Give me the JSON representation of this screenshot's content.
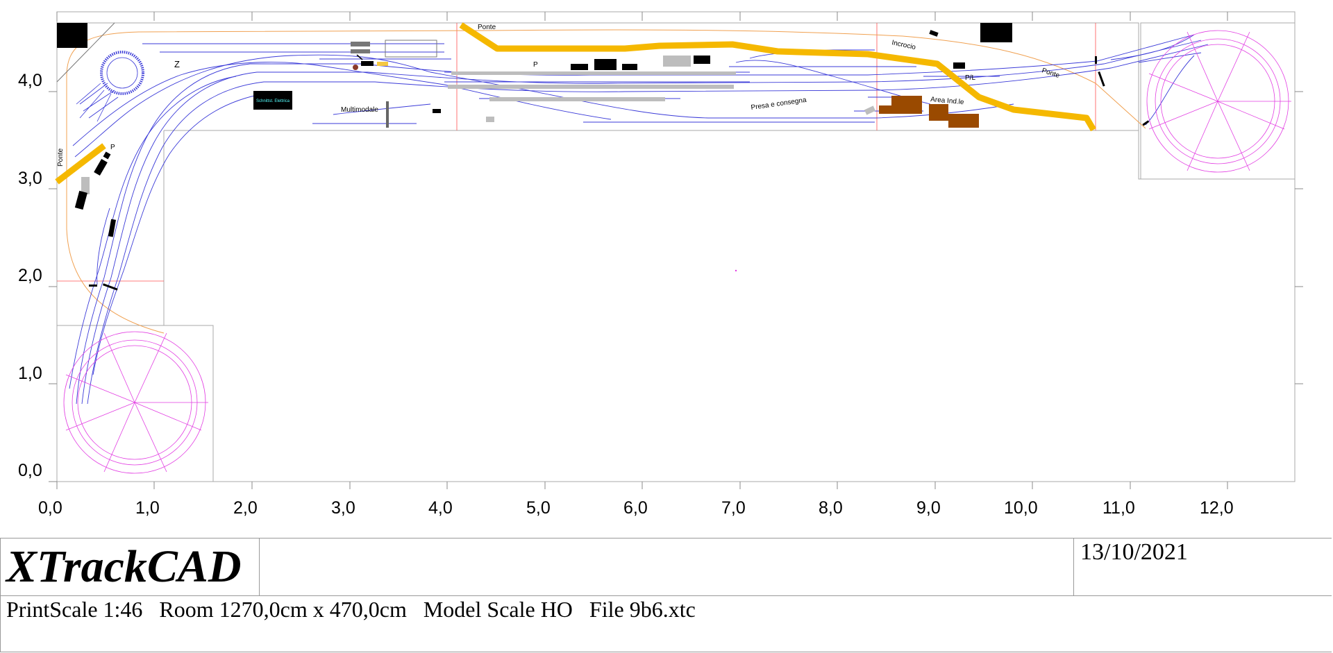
{
  "diagram": {
    "x_ticks": [
      "0,0",
      "1,0",
      "2,0",
      "3,0",
      "4,0",
      "5,0",
      "6,0",
      "7,0",
      "8,0",
      "9,0",
      "10,0",
      "11,0",
      "12,0"
    ],
    "y_ticks": [
      "0,0",
      "1,0",
      "2,0",
      "3,0",
      "4,0"
    ],
    "labels": {
      "ponte_top": "Ponte",
      "ponte_left": "Ponte",
      "ponte_right": "Ponte",
      "p_station": "P",
      "p_left": "P",
      "z_label": "Z",
      "incrocio": "Incrocio",
      "pl": "P/L",
      "area_ind": "Area Ind.le",
      "presa": "Presa e consegna",
      "multimodale": "Multimodale",
      "schaltpult": "Schnittst. Elettrica"
    },
    "colors": {
      "track": "#3a3ad8",
      "bridge": "#f5b800",
      "turntable": "#e23ee2",
      "boundary": "#f0a050",
      "grid": "#b0b0b0",
      "industry": "#9a4a00",
      "platform": "#bdbdbd"
    }
  },
  "titleblock": {
    "brand": "XTrackCAD",
    "date": "13/10/2021",
    "info": "PrintScale 1:46   Room 1270,0cm x 470,0cm   Model Scale HO   File 9b6.xtc"
  }
}
